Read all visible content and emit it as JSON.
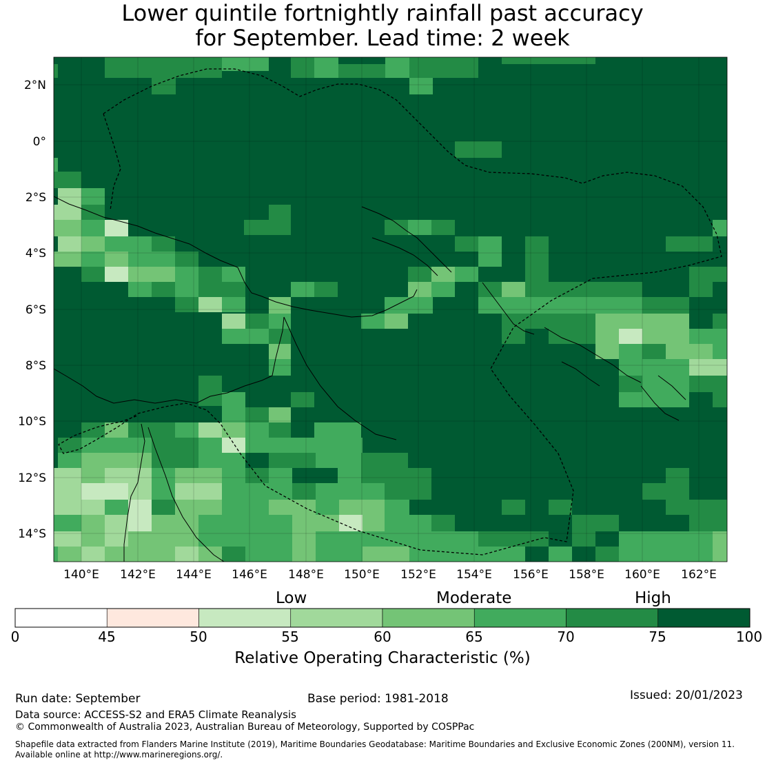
{
  "title": {
    "line1": "Lower quintile fortnightly rainfall past accuracy",
    "line2": "for September. Lead time: 2 week"
  },
  "map": {
    "lat_labels": [
      "2°N",
      "0°",
      "2°S",
      "4°S",
      "6°S",
      "8°S",
      "10°S",
      "12°S",
      "14°S"
    ],
    "lon_labels": [
      "140°E",
      "142°E",
      "144°E",
      "146°E",
      "148°E",
      "150°E",
      "152°E",
      "154°E",
      "156°E",
      "158°E",
      "160°E",
      "162°E"
    ],
    "lat_values": [
      2,
      0,
      -2,
      -4,
      -6,
      -8,
      -10,
      -12,
      -14
    ],
    "lon_values": [
      140,
      142,
      144,
      146,
      148,
      150,
      152,
      154,
      156,
      158,
      160,
      162
    ],
    "extent": {
      "lon_min": 139.0,
      "lon_max": 163.0,
      "lat_min": -15.0,
      "lat_max": 3.0
    }
  },
  "colorbar": {
    "category_low": "Low",
    "category_moderate": "Moderate",
    "category_high": "High",
    "ticks": [
      "0",
      "45",
      "50",
      "55",
      "60",
      "65",
      "70",
      "75",
      "100"
    ],
    "colors": [
      "#ffffff",
      "#fee8de",
      "#c7e9c0",
      "#a1d99b",
      "#74c476",
      "#41ab5d",
      "#238b45",
      "#005a32"
    ],
    "label": "Relative Operating Characteristic (%)"
  },
  "footer": {
    "run_date": "Run date: September",
    "base_period": "Base period: 1981-2018",
    "issued": "Issued: 20/01/2023",
    "data_source": "Data source: ACCESS-S2 and ERA5 Climate Reanalysis",
    "copyright": "© Commonwealth of Australia 2023, Australian Bureau of Meteorology, Supported by COSPPac",
    "shapefile_line1": "Shapefile data extracted from Flanders Marine Institute (2019), Maritime Boundaries Geodatabase: Maritime Boundaries and Exclusive Economic Zones (200NM), version 11.",
    "shapefile_line2": "Available online at http://www.marineregions.org/."
  }
}
